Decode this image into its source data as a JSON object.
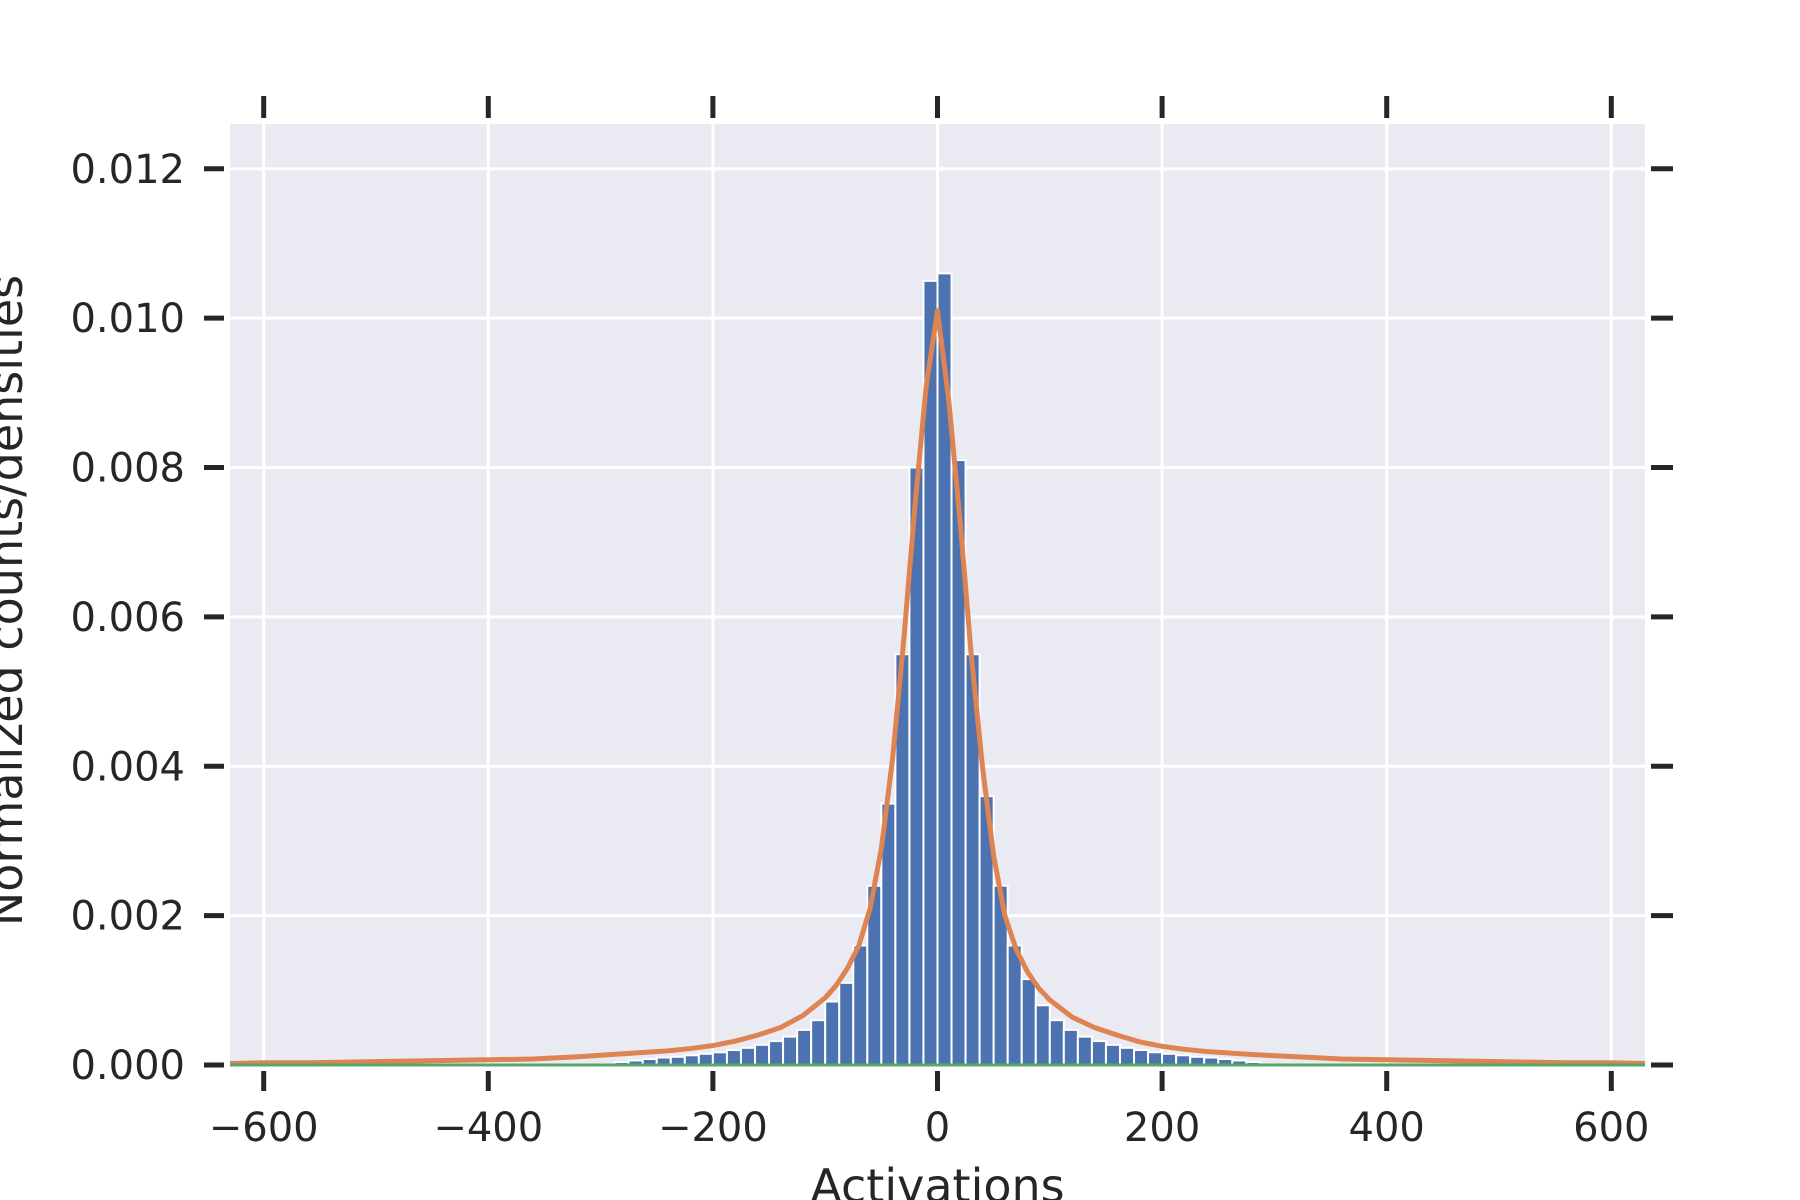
{
  "chart_data": {
    "type": "bar",
    "title": "",
    "xlabel": "Activations",
    "ylabel": "Normalized counts/densities",
    "xlim": [
      -630,
      630
    ],
    "ylim": [
      0,
      0.0126
    ],
    "x_ticks": [
      -600,
      -400,
      -200,
      0,
      200,
      400,
      600
    ],
    "x_tick_labels": [
      "−600",
      "−400",
      "−200",
      "0",
      "200",
      "400",
      "600"
    ],
    "y_ticks": [
      0.0,
      0.002,
      0.004,
      0.006,
      0.008,
      0.01,
      0.012
    ],
    "y_tick_labels": [
      "0.000",
      "0.002",
      "0.004",
      "0.006",
      "0.008",
      "0.010",
      "0.012"
    ],
    "grid": true,
    "legend": "none",
    "bin_width": 12.5,
    "histogram": {
      "name": "",
      "color": "#4c72b0",
      "bin_centers": [
        -281.25,
        -268.75,
        -256.25,
        -243.75,
        -231.25,
        -218.75,
        -206.25,
        -193.75,
        -181.25,
        -168.75,
        -156.25,
        -143.75,
        -131.25,
        -118.75,
        -106.25,
        -93.75,
        -81.25,
        -68.75,
        -56.25,
        -43.75,
        -31.25,
        -18.75,
        -6.25,
        6.25,
        18.75,
        31.25,
        43.75,
        56.25,
        68.75,
        81.25,
        93.75,
        106.25,
        118.75,
        131.25,
        143.75,
        156.25,
        168.75,
        181.25,
        193.75,
        206.25,
        218.75,
        231.25,
        243.75,
        256.25,
        268.75,
        281.25
      ],
      "values": [
        4e-05,
        6e-05,
        8e-05,
        0.0001,
        0.00011,
        0.00013,
        0.00015,
        0.00017,
        0.0002,
        0.00023,
        0.00027,
        0.00032,
        0.00038,
        0.00047,
        0.0006,
        0.00085,
        0.0011,
        0.0016,
        0.0024,
        0.0035,
        0.0055,
        0.008,
        0.0105,
        0.0106,
        0.0081,
        0.0055,
        0.0036,
        0.0024,
        0.0016,
        0.00115,
        0.0008,
        0.0006,
        0.00047,
        0.00038,
        0.00032,
        0.00027,
        0.00023,
        0.0002,
        0.00017,
        0.00015,
        0.00013,
        0.00011,
        0.0001,
        8e-05,
        6e-05,
        4e-05
      ]
    },
    "series": [
      {
        "name": "",
        "type": "line",
        "color": "#dd8452",
        "x": [
          -630,
          -600,
          -560,
          -520,
          -480,
          -440,
          -400,
          -360,
          -320,
          -280,
          -240,
          -220,
          -200,
          -180,
          -160,
          -140,
          -120,
          -100,
          -90,
          -80,
          -70,
          -60,
          -50,
          -40,
          -30,
          -20,
          -10,
          0,
          10,
          20,
          30,
          40,
          50,
          60,
          70,
          80,
          90,
          100,
          120,
          140,
          160,
          180,
          200,
          220,
          240,
          280,
          320,
          360,
          400,
          440,
          480,
          520,
          560,
          600,
          630
        ],
        "y": [
          2e-05,
          3e-05,
          3e-05,
          4e-05,
          5e-05,
          6e-05,
          7e-05,
          8e-05,
          0.00011,
          0.00015,
          0.00019,
          0.00022,
          0.00026,
          0.00032,
          0.0004,
          0.0005,
          0.00066,
          0.0009,
          0.00107,
          0.0013,
          0.0016,
          0.0021,
          0.0029,
          0.0041,
          0.0057,
          0.0075,
          0.0091,
          0.0101,
          0.0089,
          0.0073,
          0.0055,
          0.004,
          0.0028,
          0.002,
          0.00155,
          0.00125,
          0.00103,
          0.00087,
          0.00064,
          0.0005,
          0.0004,
          0.00031,
          0.00025,
          0.00021,
          0.00018,
          0.00014,
          0.00011,
          8e-05,
          7e-05,
          6e-05,
          5e-05,
          4e-05,
          3e-05,
          3e-05,
          2e-05
        ]
      },
      {
        "name": "",
        "type": "line",
        "color": "#55a868",
        "x": [
          -630,
          630
        ],
        "y": [
          0.0,
          0.0
        ]
      }
    ],
    "colors": {
      "plot_background": "#eaeaf2",
      "grid": "#ffffff",
      "text": "#262626",
      "tick_mark": "#262626"
    }
  }
}
